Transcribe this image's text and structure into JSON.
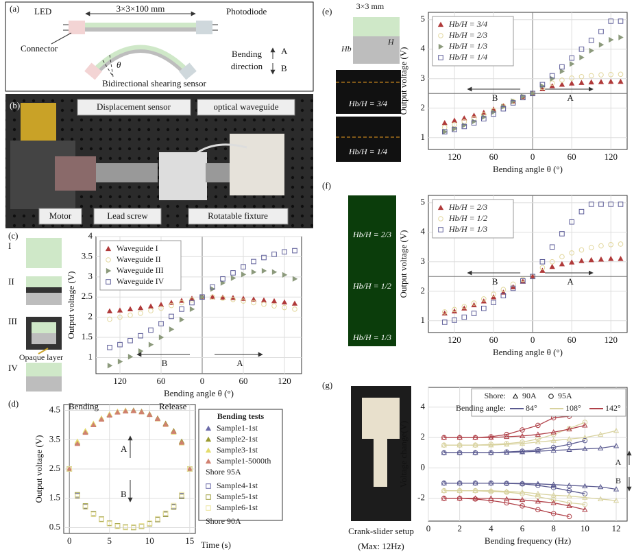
{
  "panels": {
    "a": {
      "label": "(a)",
      "led": "LED",
      "dimension": "3×3×100 mm",
      "photodiode": "Photodiode",
      "connector": "Connector",
      "angle": "θ",
      "caption": "Bidirectional shearing sensor",
      "direction": [
        "Bending",
        "direction"
      ],
      "A": "A",
      "B": "B"
    },
    "b": {
      "label": "(b)",
      "displacement": "Displacement sensor",
      "waveguide": "optical waveguide",
      "motor": "Motor",
      "screw": "Lead screw",
      "fixture": "Rotatable fixture"
    }
  },
  "chart_data": [
    {
      "type": "scatter",
      "label": "(c)",
      "x_label": "Bending angle θ (°)",
      "y_label": "Output voltage (V)",
      "grid": true,
      "legend": "upper left",
      "side": {
        "numerals": [
          "I",
          "II",
          "III",
          "IV"
        ],
        "note": "Opaque layer"
      },
      "annotations": [
        "A",
        "B"
      ],
      "xlim": [
        -155,
        145
      ],
      "ylim": [
        0.6,
        4.0
      ],
      "xticks": [
        {
          "value": -120,
          "label": "120"
        },
        {
          "value": -60,
          "label": "60"
        },
        0,
        60,
        120
      ],
      "yticks": [
        1,
        1.5,
        2,
        2.5,
        3,
        3.5,
        4
      ],
      "x": [
        -135,
        -120,
        -105,
        -90,
        -75,
        -60,
        -45,
        -30,
        -15,
        0,
        15,
        30,
        45,
        60,
        75,
        90,
        105,
        120,
        135
      ],
      "series": [
        {
          "name": "Waveguide I",
          "color": "#b03a3a",
          "marker": "triangle",
          "values": [
            2.15,
            2.17,
            2.2,
            2.23,
            2.27,
            2.31,
            2.36,
            2.41,
            2.46,
            2.5,
            2.5,
            2.49,
            2.48,
            2.46,
            2.44,
            2.42,
            2.4,
            2.37,
            2.34
          ]
        },
        {
          "name": "Waveguide II",
          "color": "#e2d79c",
          "marker": "circle",
          "values": [
            1.95,
            2.0,
            2.05,
            2.1,
            2.16,
            2.22,
            2.29,
            2.36,
            2.43,
            2.5,
            2.5,
            2.47,
            2.44,
            2.4,
            2.36,
            2.32,
            2.28,
            2.24,
            2.2
          ]
        },
        {
          "name": "Waveguide III",
          "color": "#8c9a7c",
          "marker": "triangle-right",
          "values": [
            0.8,
            0.9,
            1.02,
            1.16,
            1.32,
            1.5,
            1.7,
            1.94,
            2.2,
            2.5,
            2.7,
            2.85,
            2.97,
            3.06,
            3.12,
            3.15,
            3.12,
            3.05,
            2.95
          ]
        },
        {
          "name": "Waveguide IV",
          "color": "#5c5c98",
          "marker": "square",
          "values": [
            1.25,
            1.32,
            1.42,
            1.54,
            1.68,
            1.84,
            2.02,
            2.2,
            2.36,
            2.5,
            2.75,
            2.95,
            3.1,
            3.25,
            3.38,
            3.48,
            3.56,
            3.62,
            3.65
          ]
        }
      ]
    },
    {
      "type": "scatter",
      "label": "(d)",
      "x_label": "Time (s)",
      "y_label": "Output voltage (V)",
      "grid": true,
      "legend_title": "Bending tests",
      "groups": [
        "Shore 95A",
        "Shore 90A"
      ],
      "annotations": [
        "Bending",
        "Release",
        "A",
        "B"
      ],
      "xlim": [
        -0.7,
        15.7
      ],
      "ylim": [
        0.3,
        4.7
      ],
      "xticks": [
        0,
        5,
        10,
        15
      ],
      "yticks": [
        0.5,
        1.5,
        2.5,
        3.5,
        4.5
      ],
      "x": [
        0,
        1,
        2,
        3,
        4,
        5,
        6,
        7,
        8,
        9,
        10,
        11,
        12,
        13,
        14,
        15
      ],
      "series": [
        {
          "name": "Sample1-1st",
          "color": "#6a6aa8",
          "marker": "triangle",
          "values": [
            2.5,
            3.41,
            3.78,
            4.03,
            4.22,
            4.36,
            4.45,
            4.49,
            4.49,
            4.45,
            4.36,
            4.22,
            4.03,
            3.78,
            3.41,
            2.5
          ]
        },
        {
          "name": "Sample2-1st",
          "color": "#9a9a30",
          "marker": "triangle",
          "values": [
            2.5,
            3.38,
            3.76,
            4.02,
            4.21,
            4.35,
            4.44,
            4.48,
            4.5,
            4.46,
            4.37,
            4.23,
            4.05,
            3.8,
            3.44,
            2.5
          ]
        },
        {
          "name": "Sample3-1st",
          "color": "#e4dc6c",
          "marker": "triangle",
          "values": [
            2.5,
            3.44,
            3.8,
            4.05,
            4.23,
            4.37,
            4.46,
            4.5,
            4.48,
            4.44,
            4.35,
            4.2,
            4.01,
            3.75,
            3.38,
            2.5
          ]
        },
        {
          "name": "Sample1-5000th",
          "color": "#d08070",
          "marker": "triangle",
          "values": [
            2.5,
            3.36,
            3.74,
            4.0,
            4.19,
            4.33,
            4.43,
            4.47,
            4.48,
            4.44,
            4.35,
            4.21,
            4.02,
            3.77,
            3.4,
            2.5
          ]
        },
        {
          "name": "Sample4-1st",
          "color": "#6a6aa8",
          "marker": "square",
          "values": [
            2.5,
            1.59,
            1.22,
            0.97,
            0.78,
            0.64,
            0.55,
            0.51,
            0.51,
            0.55,
            0.64,
            0.78,
            0.97,
            1.22,
            1.59,
            2.5
          ]
        },
        {
          "name": "Sample5-1st",
          "color": "#a0a040",
          "marker": "square",
          "values": [
            2.5,
            1.62,
            1.24,
            0.98,
            0.79,
            0.65,
            0.56,
            0.52,
            0.5,
            0.54,
            0.63,
            0.77,
            0.95,
            1.2,
            1.56,
            2.5
          ]
        },
        {
          "name": "Sample6-1st",
          "color": "#ece49c",
          "marker": "square",
          "values": [
            2.5,
            1.56,
            1.2,
            0.95,
            0.77,
            0.63,
            0.54,
            0.5,
            0.52,
            0.56,
            0.65,
            0.8,
            0.99,
            1.25,
            1.62,
            2.5
          ]
        }
      ]
    },
    {
      "type": "scatter",
      "label": "(e)",
      "x_label": "Bending angle θ (°)",
      "y_label": "Output voltage (V)",
      "grid": true,
      "legend": "upper left",
      "ref_y": 2.5,
      "side": {
        "size": "3×3 mm",
        "hb": "Hb",
        "h": "H",
        "images": [
          "Hb/H = 3/4",
          "Hb/H = 1/4"
        ]
      },
      "annotations": [
        "A",
        "B"
      ],
      "xlim": [
        -160,
        145
      ],
      "ylim": [
        0.6,
        5.25
      ],
      "xticks": [
        {
          "value": -120,
          "label": "120"
        },
        {
          "value": -60,
          "label": "60"
        },
        0,
        60,
        120
      ],
      "yticks": [
        1,
        2,
        3,
        4,
        5
      ],
      "x": [
        -135,
        -120,
        -105,
        -90,
        -75,
        -60,
        -45,
        -30,
        -15,
        0,
        15,
        30,
        45,
        60,
        75,
        90,
        105,
        120,
        135
      ],
      "series": [
        {
          "name": "Hb/H = 3/4",
          "color": "#b03a3a",
          "marker": "triangle",
          "values": [
            1.5,
            1.58,
            1.66,
            1.75,
            1.85,
            1.96,
            2.08,
            2.22,
            2.37,
            2.5,
            2.65,
            2.75,
            2.8,
            2.84,
            2.86,
            2.88,
            2.89,
            2.9,
            2.9
          ]
        },
        {
          "name": "Hb/H = 2/3",
          "color": "#e2d79c",
          "marker": "circle",
          "values": [
            1.35,
            1.44,
            1.54,
            1.65,
            1.78,
            1.92,
            2.07,
            2.23,
            2.38,
            2.5,
            2.7,
            2.85,
            2.95,
            3.02,
            3.07,
            3.1,
            3.13,
            3.14,
            3.15
          ]
        },
        {
          "name": "Hb/H = 1/3",
          "color": "#8c9a7c",
          "marker": "triangle-right",
          "values": [
            1.2,
            1.3,
            1.42,
            1.55,
            1.7,
            1.87,
            2.05,
            2.24,
            2.4,
            2.5,
            2.75,
            3.0,
            3.25,
            3.5,
            3.72,
            3.95,
            4.15,
            4.32,
            4.4
          ]
        },
        {
          "name": "Hb/H = 1/4",
          "color": "#5c5c98",
          "marker": "square",
          "values": [
            1.2,
            1.28,
            1.38,
            1.5,
            1.64,
            1.8,
            1.98,
            2.18,
            2.36,
            2.5,
            2.8,
            3.1,
            3.4,
            3.7,
            4.0,
            4.3,
            4.6,
            4.95,
            4.95
          ]
        }
      ]
    },
    {
      "type": "scatter",
      "label": "(f)",
      "x_label": "Bending angle θ (°)",
      "y_label": "Output voltage (V)",
      "grid": true,
      "legend": "upper left",
      "ref_y": 2.5,
      "side": {
        "images": [
          "Hb/H = 2/3",
          "Hb/H = 1/2",
          "Hb/H = 1/3"
        ]
      },
      "annotations": [
        "A",
        "B"
      ],
      "xlim": [
        -160,
        145
      ],
      "ylim": [
        0.6,
        5.25
      ],
      "xticks": [
        {
          "value": -120,
          "label": "120"
        },
        {
          "value": -60,
          "label": "60"
        },
        0,
        60,
        120
      ],
      "yticks": [
        1,
        2,
        3,
        4,
        5
      ],
      "x": [
        -135,
        -120,
        -105,
        -90,
        -75,
        -60,
        -45,
        -30,
        -15,
        0,
        15,
        30,
        45,
        60,
        75,
        90,
        105,
        120,
        135
      ],
      "series": [
        {
          "name": "Hb/H = 2/3",
          "color": "#b03a3a",
          "marker": "triangle",
          "values": [
            1.25,
            1.32,
            1.42,
            1.53,
            1.66,
            1.8,
            1.96,
            2.14,
            2.33,
            2.5,
            2.7,
            2.83,
            2.92,
            2.98,
            3.03,
            3.06,
            3.08,
            3.1,
            3.1
          ]
        },
        {
          "name": "Hb/H = 1/2",
          "color": "#e2d79c",
          "marker": "circle",
          "values": [
            1.3,
            1.38,
            1.48,
            1.6,
            1.74,
            1.9,
            2.06,
            2.24,
            2.4,
            2.5,
            2.8,
            3.0,
            3.17,
            3.3,
            3.4,
            3.48,
            3.54,
            3.58,
            3.6
          ]
        },
        {
          "name": "Hb/H = 1/3",
          "color": "#5c5c98",
          "marker": "square",
          "values": [
            0.95,
            1.02,
            1.12,
            1.25,
            1.42,
            1.62,
            1.85,
            2.1,
            2.35,
            2.5,
            3.0,
            3.5,
            3.95,
            4.35,
            4.7,
            4.95,
            4.95,
            4.95,
            4.95
          ]
        }
      ]
    },
    {
      "type": "line",
      "label": "(g)",
      "x_label": "Bending frequency (Hz)",
      "y_label": "Voltage change(V)",
      "grid": true,
      "hollow": true,
      "side": {
        "caption": "Crank-slider setup",
        "note": "(Max: 12Hz)"
      },
      "legend": {
        "shore_title": "Shore:",
        "shores": [
          "90A",
          "95A"
        ],
        "angle_title": "Bending angle:",
        "angles": [
          "84°",
          "108°",
          "142°"
        ]
      },
      "annotations": [
        "A",
        "B"
      ],
      "xlim": [
        0,
        12.7
      ],
      "ylim": [
        -3.5,
        5.3
      ],
      "xticks": [
        0,
        2,
        4,
        6,
        8,
        10,
        12
      ],
      "yticks": [
        -2,
        0,
        2,
        4
      ],
      "series": [
        {
          "color": "#5a5a90",
          "marker": "triangle",
          "x": [
            1,
            2,
            3,
            4,
            5,
            6,
            7,
            8,
            9,
            10,
            11,
            12
          ],
          "values": [
            1,
            1,
            1,
            1,
            1.02,
            1.05,
            1.1,
            1.15,
            1.2,
            1.25,
            1.3,
            1.45
          ]
        },
        {
          "color": "#5a5a90",
          "marker": "circle",
          "x": [
            1,
            2,
            3,
            4,
            5,
            6,
            7,
            8,
            9,
            10
          ],
          "values": [
            1,
            1,
            1,
            1,
            1.05,
            1.1,
            1.2,
            1.35,
            1.55,
            1.8
          ]
        },
        {
          "color": "#d8d29e",
          "marker": "triangle",
          "x": [
            1,
            2,
            3,
            4,
            5,
            6,
            7,
            8,
            9,
            10,
            11,
            12
          ],
          "values": [
            1.5,
            1.5,
            1.5,
            1.5,
            1.55,
            1.6,
            1.7,
            1.8,
            1.9,
            2.0,
            2.2,
            2.45
          ]
        },
        {
          "color": "#d8d29e",
          "marker": "circle",
          "x": [
            1,
            2,
            3,
            4,
            5,
            6,
            7,
            8,
            9,
            10
          ],
          "values": [
            1.5,
            1.5,
            1.5,
            1.55,
            1.6,
            1.7,
            1.9,
            2.2,
            2.6,
            3.0
          ]
        },
        {
          "color": "#b04048",
          "marker": "triangle",
          "x": [
            1,
            2,
            3,
            4,
            5,
            6,
            7,
            8,
            9,
            10
          ],
          "values": [
            2,
            2,
            2,
            2,
            2.05,
            2.1,
            2.2,
            2.35,
            2.55,
            2.8
          ]
        },
        {
          "color": "#b04048",
          "marker": "circle",
          "x": [
            1,
            2,
            3,
            4,
            5,
            6,
            7,
            8,
            9
          ],
          "values": [
            2,
            2,
            2,
            2.05,
            2.2,
            2.5,
            2.8,
            3.3,
            3.4
          ]
        },
        {
          "color": "#5a5a90",
          "marker": "triangle",
          "x": [
            1,
            2,
            3,
            4,
            5,
            6,
            7,
            8,
            9,
            10,
            11,
            12
          ],
          "values": [
            -1,
            -1,
            -1,
            -1,
            -1,
            -1.02,
            -1.05,
            -1.1,
            -1.15,
            -1.2,
            -1.25,
            -1.4
          ]
        },
        {
          "color": "#5a5a90",
          "marker": "circle",
          "x": [
            1,
            2,
            3,
            4,
            5,
            6,
            7,
            8,
            9,
            10
          ],
          "values": [
            -1,
            -1,
            -1,
            -1,
            -1.02,
            -1.05,
            -1.15,
            -1.3,
            -1.5,
            -1.7
          ]
        },
        {
          "color": "#d8d29e",
          "marker": "triangle",
          "x": [
            1,
            2,
            3,
            4,
            5,
            6,
            7,
            8,
            9,
            10,
            11,
            12
          ],
          "values": [
            -1.5,
            -1.5,
            -1.5,
            -1.5,
            -1.55,
            -1.6,
            -1.7,
            -1.8,
            -1.85,
            -1.95,
            -2.05,
            -2.15
          ]
        },
        {
          "color": "#d8d29e",
          "marker": "circle",
          "x": [
            1,
            2,
            3,
            4,
            5,
            6,
            7,
            8,
            9,
            10
          ],
          "values": [
            -1.5,
            -1.5,
            -1.5,
            -1.55,
            -1.6,
            -1.7,
            -1.9,
            -2.1,
            -2.3,
            -2.4
          ]
        },
        {
          "color": "#b04048",
          "marker": "triangle",
          "x": [
            1,
            2,
            3,
            4,
            5,
            6,
            7,
            8,
            9,
            10
          ],
          "values": [
            -2,
            -2,
            -2,
            -2,
            -2.05,
            -2.1,
            -2.2,
            -2.3,
            -2.5,
            -2.75
          ]
        },
        {
          "color": "#b04048",
          "marker": "circle",
          "x": [
            1,
            2,
            3,
            4,
            5,
            6,
            7,
            8,
            9
          ],
          "values": [
            -2,
            -2,
            -2.05,
            -2.15,
            -2.3,
            -2.5,
            -2.75,
            -3.0,
            -3.2
          ]
        }
      ]
    }
  ]
}
